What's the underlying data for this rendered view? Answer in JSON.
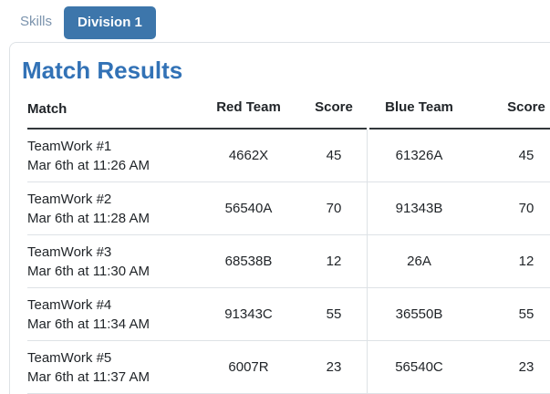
{
  "tabs": {
    "skills_label": "Skills",
    "division_label": "Division 1"
  },
  "panel": {
    "title": "Match Results"
  },
  "table": {
    "headers": [
      "Match",
      "Red Team",
      "Score",
      "Blue Team",
      "Score"
    ],
    "rows": [
      {
        "match": "TeamWork #1",
        "time": "Mar 6th at 11:26 AM",
        "red_team": "4662X",
        "red_score": "45",
        "blue_team": "61326A",
        "blue_score": "45"
      },
      {
        "match": "TeamWork #2",
        "time": "Mar 6th at 11:28 AM",
        "red_team": "56540A",
        "red_score": "70",
        "blue_team": "91343B",
        "blue_score": "70"
      },
      {
        "match": "TeamWork #3",
        "time": "Mar 6th at 11:30 AM",
        "red_team": "68538B",
        "red_score": "12",
        "blue_team": "26A",
        "blue_score": "12"
      },
      {
        "match": "TeamWork #4",
        "time": "Mar 6th at 11:34 AM",
        "red_team": "91343C",
        "red_score": "55",
        "blue_team": "36550B",
        "blue_score": "55"
      },
      {
        "match": "TeamWork #5",
        "time": "Mar 6th at 11:37 AM",
        "red_team": "6007R",
        "red_score": "23",
        "blue_team": "56540C",
        "blue_score": "23"
      }
    ]
  },
  "colors": {
    "active_tab_bg": "#3d76ab",
    "inactive_tab_text": "#7b93ad",
    "heading_text": "#3272b6",
    "header_border": "#32373b",
    "row_border": "#dee2e6",
    "body_text": "#212529"
  }
}
